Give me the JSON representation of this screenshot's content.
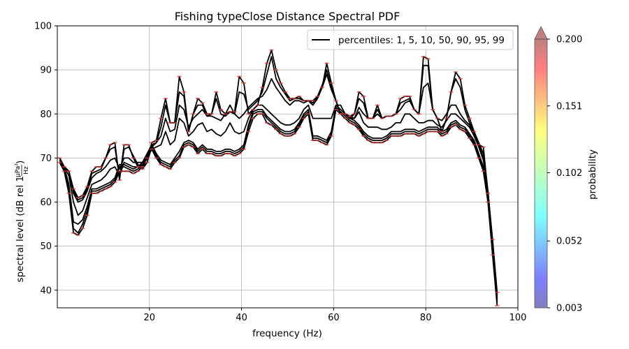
{
  "chart_data": {
    "type": "line",
    "title": "Fishing typeClose Distance Spectral PDF",
    "xlabel": "frequency (Hz)",
    "ylabel_main": "spectral level (dB rel 1",
    "ylabel_frac_num": "μPa²",
    "ylabel_frac_den": "Hz",
    "ylabel_close": ")",
    "xlim": [
      0,
      100
    ],
    "ylim": [
      36,
      100
    ],
    "x_ticks": [
      20,
      40,
      60,
      80,
      100
    ],
    "y_ticks": [
      40,
      50,
      60,
      70,
      80,
      90,
      100
    ],
    "grid": true,
    "legend": {
      "label": "percentiles: 1, 5, 10, 50, 90, 95, 99",
      "position": "top-right"
    },
    "colorbar": {
      "label": "probability",
      "ticks": [
        "0.003",
        "0.052",
        "0.102",
        "0.151",
        "0.200"
      ],
      "range": [
        0.003,
        0.2
      ],
      "extend": "max",
      "cmap": "jet"
    },
    "x": [
      0.5,
      1.5,
      2.5,
      3.5,
      4.5,
      5.5,
      6.5,
      7.5,
      8.5,
      9.5,
      10.5,
      11.5,
      12.5,
      13.5,
      14.5,
      15.5,
      16.5,
      17.5,
      18.5,
      19.5,
      20.5,
      21.5,
      22.5,
      23.5,
      24.5,
      25.5,
      26.5,
      27.5,
      28.5,
      29.5,
      30.5,
      31.5,
      32.5,
      33.5,
      34.5,
      35.5,
      36.5,
      37.5,
      38.5,
      39.5,
      40.5,
      41.5,
      42.5,
      43.5,
      44.5,
      45.5,
      46.5,
      47.5,
      48.5,
      49.5,
      50.5,
      51.5,
      52.5,
      53.5,
      54.5,
      55.5,
      56.5,
      57.5,
      58.5,
      59.5,
      60.5,
      61.5,
      62.5,
      63.5,
      64.5,
      65.5,
      66.5,
      67.5,
      68.5,
      69.5,
      70.5,
      71.5,
      72.5,
      73.5,
      74.5,
      75.5,
      76.5,
      77.5,
      78.5,
      79.5,
      80.5,
      81.5,
      82.5,
      83.5,
      84.5,
      85.5,
      86.5,
      87.5,
      88.5,
      89.5,
      90.5,
      91.5,
      92.5,
      93.5,
      94.5,
      95.5
    ],
    "series": [
      {
        "percentile": 1,
        "values": [
          69,
          67,
          62,
          53,
          52.5,
          54,
          57,
          62,
          62,
          62.5,
          63,
          63.5,
          64.5,
          67,
          67,
          67,
          66.5,
          67,
          68,
          70,
          72,
          70,
          68.5,
          68,
          67.5,
          69,
          70,
          72.5,
          73,
          72.5,
          71,
          72,
          71,
          71,
          70.5,
          70.5,
          71,
          71,
          70.5,
          71,
          72,
          76,
          79,
          80,
          80,
          78,
          77.5,
          76.5,
          75.5,
          75,
          75,
          75.5,
          77,
          79,
          80,
          74,
          74,
          73.5,
          73,
          75,
          81,
          80,
          79,
          78,
          77.5,
          76.5,
          75,
          74,
          73.5,
          73.5,
          73.5,
          74,
          75,
          75,
          75,
          75.5,
          75.5,
          75.5,
          75,
          75.5,
          76,
          76,
          76,
          75,
          75.5,
          77,
          77.5,
          76.5,
          76,
          74.5,
          73,
          70,
          67,
          60,
          48,
          36.5
        ]
      },
      {
        "percentile": 5,
        "values": [
          69.5,
          67.5,
          63,
          54,
          53,
          55,
          58,
          62.5,
          62.5,
          63,
          63.5,
          64,
          65,
          68,
          68,
          67.5,
          67,
          67.5,
          68.5,
          70.5,
          72.5,
          70.5,
          69,
          68.5,
          68,
          69.5,
          70.5,
          73,
          73.5,
          73,
          71.5,
          72.5,
          71.5,
          71.5,
          71,
          71,
          71.5,
          71.5,
          71,
          71.5,
          72.5,
          77,
          80,
          80.5,
          80.5,
          79,
          78,
          77,
          76,
          75.5,
          75.5,
          76,
          77.5,
          79.5,
          80.5,
          74.5,
          74.5,
          74,
          73.5,
          75.5,
          81.5,
          80.5,
          79.5,
          78.5,
          78,
          77,
          75.5,
          74.5,
          74,
          74,
          74,
          74.5,
          75.5,
          75.5,
          75.5,
          76,
          76,
          76,
          75.5,
          76,
          76.5,
          76.5,
          76.5,
          75.5,
          76,
          77.5,
          78,
          77,
          76.5,
          75,
          73.5,
          70.5,
          67.5,
          60.5,
          48.5,
          37
        ]
      },
      {
        "percentile": 10,
        "values": [
          70,
          68,
          64,
          55.5,
          55,
          56,
          59,
          63,
          63,
          63.5,
          64,
          64.5,
          65.5,
          68.5,
          68.5,
          68,
          67.5,
          68,
          69,
          71,
          73,
          71,
          69.5,
          69,
          68.5,
          70,
          71.5,
          73.5,
          74,
          73.5,
          72,
          73,
          72,
          72,
          71.5,
          71.5,
          72,
          72,
          71.5,
          72,
          73,
          77.5,
          80.5,
          81,
          81,
          79.5,
          78.5,
          77.5,
          76.5,
          76,
          76,
          76.5,
          78,
          80,
          81,
          75,
          75,
          74.5,
          74,
          76,
          82,
          81,
          80,
          79,
          78.5,
          77.5,
          76,
          75,
          74.5,
          74.5,
          74.5,
          75,
          76,
          76,
          76,
          76.5,
          76.5,
          76.5,
          76,
          76.5,
          77,
          77,
          77,
          76,
          76.5,
          78,
          78.5,
          77.5,
          77,
          75.5,
          74,
          71,
          68,
          61,
          49,
          37.5
        ]
      },
      {
        "percentile": 50,
        "values": [
          70,
          68,
          66,
          60,
          57,
          58,
          61,
          64,
          64.5,
          65,
          66,
          67.5,
          68,
          66,
          69,
          68.5,
          68,
          68,
          68.5,
          70,
          72,
          72.5,
          73,
          76,
          73,
          74,
          79,
          78,
          75,
          76,
          77.5,
          78,
          76,
          76.5,
          75.5,
          75,
          76,
          78,
          76,
          75.5,
          76,
          79,
          81,
          82,
          82,
          81,
          80,
          79,
          78,
          77.5,
          77.5,
          78,
          79,
          81,
          82,
          79,
          79,
          79,
          79,
          79,
          82,
          82,
          80,
          79.5,
          79,
          80.5,
          78,
          77,
          77,
          77,
          76.5,
          76.5,
          77,
          78,
          78,
          80,
          80,
          79,
          78,
          78,
          78.5,
          78.5,
          77.5,
          77,
          78.5,
          80,
          80,
          79,
          78,
          77,
          75,
          72.5,
          69.5,
          62,
          50,
          38
        ]
      },
      {
        "percentile": 90,
        "values": [
          70,
          68,
          67,
          62,
          60,
          60.5,
          62.5,
          65.5,
          66.5,
          67,
          68,
          69.5,
          70,
          67.5,
          70,
          70,
          69,
          69,
          69,
          70.5,
          73,
          73.5,
          75,
          79,
          76,
          76.5,
          82,
          81,
          77,
          79,
          80,
          81,
          79.5,
          79.5,
          79,
          78.5,
          80,
          82,
          80,
          79,
          80,
          81.5,
          82.5,
          83.5,
          84,
          85.5,
          88,
          86,
          84.5,
          83,
          82,
          83,
          83,
          82.5,
          83,
          82,
          83.5,
          86,
          89,
          85.5,
          83,
          80,
          80,
          79,
          79,
          81.5,
          80,
          79,
          79,
          80,
          79,
          79.5,
          79.5,
          80,
          81,
          82.5,
          83,
          81,
          80,
          86,
          87,
          81,
          79,
          78.5,
          80,
          82,
          82,
          80,
          78.5,
          77.5,
          75.5,
          73,
          70,
          62.5,
          50.5,
          38.5
        ]
      },
      {
        "percentile": 95,
        "values": [
          70,
          68,
          67,
          62.5,
          60.5,
          61,
          63,
          66.5,
          67,
          67.5,
          70,
          72,
          72.5,
          65.5,
          72,
          72.5,
          70.5,
          68.5,
          68,
          69,
          72.5,
          73.5,
          77,
          82,
          78,
          78,
          85,
          84,
          76,
          80,
          82,
          82,
          79.5,
          80,
          83.5,
          80,
          79.5,
          80.5,
          80,
          85,
          84.5,
          81,
          82,
          83,
          85,
          89,
          93,
          88,
          86,
          84.5,
          83,
          83.5,
          83.5,
          83,
          83,
          82.5,
          84,
          86.5,
          90,
          86,
          83,
          80,
          80,
          79,
          80,
          83.5,
          82.5,
          79,
          79,
          81,
          79,
          79.5,
          79.5,
          80,
          82.5,
          83,
          83.5,
          81,
          80,
          91,
          91,
          81,
          79,
          76,
          79,
          85,
          88,
          86,
          81,
          78,
          76,
          73.5,
          71,
          62.5,
          51,
          39
        ]
      },
      {
        "percentile": 99,
        "values": [
          70,
          68,
          67,
          63,
          61,
          61.5,
          63.5,
          67,
          68,
          68,
          70,
          73,
          73.5,
          65,
          73,
          73,
          70,
          68,
          67.5,
          69,
          73.5,
          74,
          79,
          83.5,
          78,
          78,
          88.5,
          85,
          76,
          80,
          83.5,
          82.5,
          80,
          80,
          85,
          81,
          80,
          80.5,
          80.5,
          88.5,
          87,
          80,
          81,
          82,
          86,
          91.5,
          94.5,
          90,
          87,
          85,
          83.5,
          83.5,
          84,
          83,
          83,
          83,
          84,
          86,
          91.5,
          87,
          83,
          80,
          80,
          79.5,
          80,
          85,
          84,
          79,
          79,
          82,
          79,
          79.5,
          79.5,
          80,
          83.5,
          84,
          84,
          81,
          80,
          93,
          92.5,
          81,
          79,
          76,
          79,
          85,
          89.5,
          88,
          82,
          79,
          76,
          73,
          72.5,
          62,
          51.5,
          39.5
        ]
      }
    ]
  }
}
